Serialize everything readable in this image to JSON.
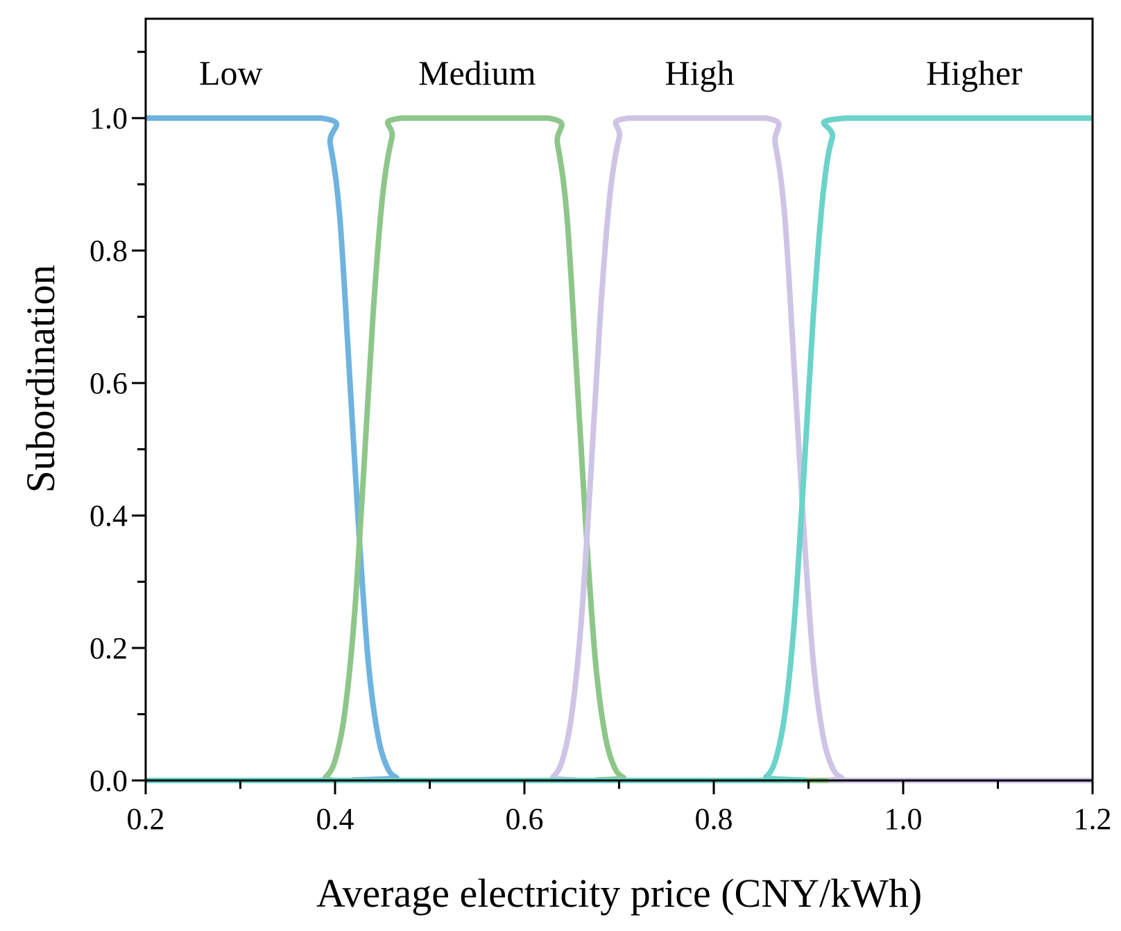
{
  "chart_data": {
    "type": "line",
    "title": "",
    "xlabel": "Average electricity price (CNY/kWh)",
    "ylabel": "Subordination",
    "xlim": [
      0.2,
      1.2
    ],
    "ylim": [
      0.0,
      1.15
    ],
    "x_ticks": [
      0.2,
      0.4,
      0.6,
      0.8,
      1.0,
      1.2
    ],
    "x_tick_labels": [
      "0.2",
      "0.4",
      "0.6",
      "0.8",
      "1.0",
      "1.2"
    ],
    "y_ticks": [
      0.0,
      0.2,
      0.4,
      0.6,
      0.8,
      1.0
    ],
    "y_tick_labels": [
      "0.0",
      "0.2",
      "0.4",
      "0.6",
      "0.8",
      "1.0"
    ],
    "x_minor_step": 0.1,
    "y_minor_step": 0.1,
    "grid": false,
    "series": [
      {
        "name": "Low",
        "color": "#6fb3df",
        "label_x": 0.29,
        "x": [
          0.2,
          0.385,
          0.395,
          0.405,
          0.415,
          0.425,
          0.435,
          0.445,
          0.455,
          0.465,
          0.475,
          1.2
        ],
        "values": [
          1.0,
          1.0,
          0.96,
          0.85,
          0.62,
          0.38,
          0.18,
          0.07,
          0.02,
          0.004,
          0.0,
          0.0
        ]
      },
      {
        "name": "Medium",
        "color": "#8ec68a",
        "label_x": 0.55,
        "x": [
          0.2,
          0.38,
          0.39,
          0.4,
          0.41,
          0.42,
          0.43,
          0.44,
          0.45,
          0.46,
          0.47,
          0.625,
          0.635,
          0.645,
          0.655,
          0.665,
          0.675,
          0.685,
          0.695,
          0.705,
          0.715,
          1.2
        ],
        "values": [
          0.0,
          0.0,
          0.005,
          0.03,
          0.1,
          0.24,
          0.46,
          0.7,
          0.88,
          0.97,
          1.0,
          1.0,
          0.96,
          0.85,
          0.62,
          0.38,
          0.18,
          0.07,
          0.02,
          0.004,
          0.0,
          0.0
        ]
      },
      {
        "name": "High",
        "color": "#cdc4e6",
        "label_x": 0.785,
        "x": [
          0.2,
          0.62,
          0.63,
          0.64,
          0.65,
          0.66,
          0.67,
          0.68,
          0.69,
          0.7,
          0.71,
          0.855,
          0.865,
          0.875,
          0.885,
          0.895,
          0.905,
          0.915,
          0.925,
          0.935,
          0.945,
          1.2
        ],
        "values": [
          0.0,
          0.0,
          0.005,
          0.03,
          0.1,
          0.24,
          0.46,
          0.7,
          0.88,
          0.97,
          1.0,
          1.0,
          0.96,
          0.85,
          0.62,
          0.38,
          0.18,
          0.07,
          0.02,
          0.004,
          0.0,
          0.0
        ]
      },
      {
        "name": "Higher",
        "color": "#6bd3c9",
        "label_x": 1.075,
        "x": [
          0.2,
          0.845,
          0.855,
          0.865,
          0.875,
          0.885,
          0.895,
          0.905,
          0.915,
          0.925,
          0.94,
          1.2
        ],
        "values": [
          0.0,
          0.0,
          0.005,
          0.03,
          0.1,
          0.24,
          0.46,
          0.7,
          0.88,
          0.97,
          1.0,
          1.0
        ]
      }
    ]
  }
}
